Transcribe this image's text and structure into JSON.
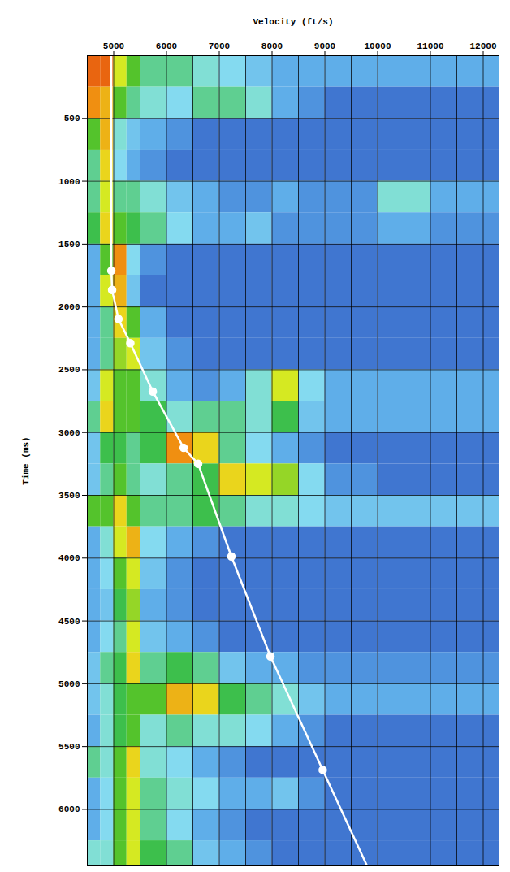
{
  "chart_data": {
    "type": "heatmap",
    "xlabel": "Velocity (ft/s)",
    "ylabel": "Time (ms)",
    "xlim": [
      4500,
      12300
    ],
    "xticks": [
      5000,
      6000,
      7000,
      8000,
      9000,
      10000,
      11000,
      12000
    ],
    "ylim": [
      0,
      6450
    ],
    "yticks": [
      500,
      1000,
      1500,
      2000,
      2500,
      3000,
      3500,
      4000,
      4500,
      5000,
      5500,
      6000
    ],
    "grid": true,
    "velocity_edges": [
      4500,
      4750,
      5000,
      5250,
      5500,
      6000,
      6500,
      7000,
      7500,
      8000,
      8500,
      9000,
      10000,
      11000,
      12300
    ],
    "time_edges": [
      0,
      250,
      500,
      750,
      1000,
      1250,
      1500,
      1750,
      2000,
      2250,
      2500,
      2750,
      3000,
      3250,
      3500,
      3750,
      4000,
      4250,
      4500,
      4750,
      5000,
      5250,
      5500,
      5750,
      6000,
      6250,
      6450
    ],
    "semblance_range": [
      0,
      1
    ],
    "semblance": [
      [
        0.9,
        0.9,
        0.7,
        0.6,
        0.5,
        0.5,
        0.45,
        0.4,
        0.35,
        0.3,
        0.3,
        0.3,
        0.3,
        0.3
      ],
      [
        0.85,
        0.8,
        0.6,
        0.5,
        0.45,
        0.4,
        0.5,
        0.5,
        0.45,
        0.3,
        0.25,
        0.2,
        0.2,
        0.2
      ],
      [
        0.6,
        0.8,
        0.45,
        0.35,
        0.3,
        0.25,
        0.2,
        0.2,
        0.2,
        0.2,
        0.2,
        0.2,
        0.2,
        0.2
      ],
      [
        0.5,
        0.75,
        0.4,
        0.3,
        0.25,
        0.2,
        0.2,
        0.2,
        0.2,
        0.2,
        0.2,
        0.2,
        0.2,
        0.2
      ],
      [
        0.5,
        0.7,
        0.5,
        0.5,
        0.45,
        0.35,
        0.3,
        0.25,
        0.25,
        0.3,
        0.25,
        0.25,
        0.45,
        0.3
      ],
      [
        0.55,
        0.75,
        0.6,
        0.55,
        0.5,
        0.4,
        0.3,
        0.3,
        0.35,
        0.25,
        0.25,
        0.25,
        0.3,
        0.25
      ],
      [
        0.3,
        0.6,
        0.85,
        0.4,
        0.25,
        0.2,
        0.2,
        0.2,
        0.2,
        0.2,
        0.2,
        0.2,
        0.2,
        0.2
      ],
      [
        0.3,
        0.7,
        0.8,
        0.35,
        0.2,
        0.2,
        0.2,
        0.2,
        0.2,
        0.2,
        0.2,
        0.2,
        0.2,
        0.2
      ],
      [
        0.3,
        0.5,
        0.75,
        0.6,
        0.3,
        0.2,
        0.2,
        0.2,
        0.2,
        0.2,
        0.2,
        0.2,
        0.2,
        0.2
      ],
      [
        0.3,
        0.5,
        0.65,
        0.7,
        0.35,
        0.25,
        0.2,
        0.2,
        0.2,
        0.2,
        0.2,
        0.2,
        0.2,
        0.2
      ],
      [
        0.35,
        0.7,
        0.6,
        0.6,
        0.45,
        0.3,
        0.25,
        0.3,
        0.45,
        0.7,
        0.4,
        0.3,
        0.3,
        0.3
      ],
      [
        0.5,
        0.75,
        0.6,
        0.6,
        0.55,
        0.45,
        0.5,
        0.5,
        0.45,
        0.55,
        0.35,
        0.3,
        0.3,
        0.3
      ],
      [
        0.35,
        0.55,
        0.55,
        0.5,
        0.55,
        0.85,
        0.75,
        0.5,
        0.4,
        0.3,
        0.25,
        0.2,
        0.2,
        0.2
      ],
      [
        0.35,
        0.5,
        0.6,
        0.5,
        0.45,
        0.5,
        0.55,
        0.75,
        0.7,
        0.65,
        0.4,
        0.25,
        0.2,
        0.2
      ],
      [
        0.6,
        0.6,
        0.75,
        0.6,
        0.5,
        0.5,
        0.55,
        0.5,
        0.45,
        0.45,
        0.4,
        0.35,
        0.35,
        0.35
      ],
      [
        0.3,
        0.45,
        0.7,
        0.8,
        0.4,
        0.3,
        0.25,
        0.2,
        0.2,
        0.2,
        0.2,
        0.2,
        0.2,
        0.2
      ],
      [
        0.3,
        0.4,
        0.6,
        0.7,
        0.35,
        0.25,
        0.2,
        0.2,
        0.2,
        0.2,
        0.2,
        0.2,
        0.2,
        0.2
      ],
      [
        0.3,
        0.35,
        0.55,
        0.65,
        0.3,
        0.25,
        0.2,
        0.2,
        0.2,
        0.2,
        0.2,
        0.2,
        0.2,
        0.2
      ],
      [
        0.3,
        0.4,
        0.5,
        0.7,
        0.35,
        0.3,
        0.25,
        0.2,
        0.2,
        0.2,
        0.2,
        0.2,
        0.2,
        0.2
      ],
      [
        0.35,
        0.5,
        0.55,
        0.75,
        0.5,
        0.55,
        0.5,
        0.35,
        0.3,
        0.3,
        0.25,
        0.25,
        0.25,
        0.25
      ],
      [
        0.35,
        0.45,
        0.55,
        0.6,
        0.6,
        0.8,
        0.75,
        0.55,
        0.5,
        0.45,
        0.35,
        0.3,
        0.3,
        0.3
      ],
      [
        0.3,
        0.45,
        0.55,
        0.6,
        0.45,
        0.5,
        0.45,
        0.45,
        0.4,
        0.3,
        0.25,
        0.2,
        0.2,
        0.2
      ],
      [
        0.5,
        0.45,
        0.6,
        0.75,
        0.45,
        0.4,
        0.3,
        0.25,
        0.2,
        0.2,
        0.2,
        0.2,
        0.2,
        0.2
      ],
      [
        0.3,
        0.4,
        0.6,
        0.7,
        0.5,
        0.45,
        0.4,
        0.3,
        0.3,
        0.35,
        0.25,
        0.2,
        0.2,
        0.2
      ],
      [
        0.3,
        0.4,
        0.6,
        0.7,
        0.5,
        0.4,
        0.3,
        0.25,
        0.2,
        0.2,
        0.2,
        0.2,
        0.2,
        0.2
      ],
      [
        0.45,
        0.45,
        0.6,
        0.7,
        0.55,
        0.5,
        0.35,
        0.3,
        0.25,
        0.2,
        0.2,
        0.2,
        0.2,
        0.2
      ]
    ],
    "series": [
      {
        "type": "line",
        "color": "#ffffff",
        "x": [
          4955,
          4955,
          4970,
          5090,
          5315,
          5740,
          6325,
          6600,
          7230,
          7970,
          8960,
          9800
        ],
        "values": [
          0,
          1712,
          1865,
          2096,
          2288,
          2673,
          3122,
          3250,
          3987,
          4782,
          5686,
          6450
        ]
      },
      {
        "type": "scatter",
        "color": "#ffffff",
        "marker": "circle",
        "x": [
          4955,
          4970,
          5090,
          5315,
          5740,
          6325,
          6600,
          7230,
          7970,
          8960
        ],
        "values": [
          1712,
          1865,
          2096,
          2288,
          2673,
          3122,
          3250,
          3987,
          4782,
          5686
        ]
      }
    ]
  }
}
